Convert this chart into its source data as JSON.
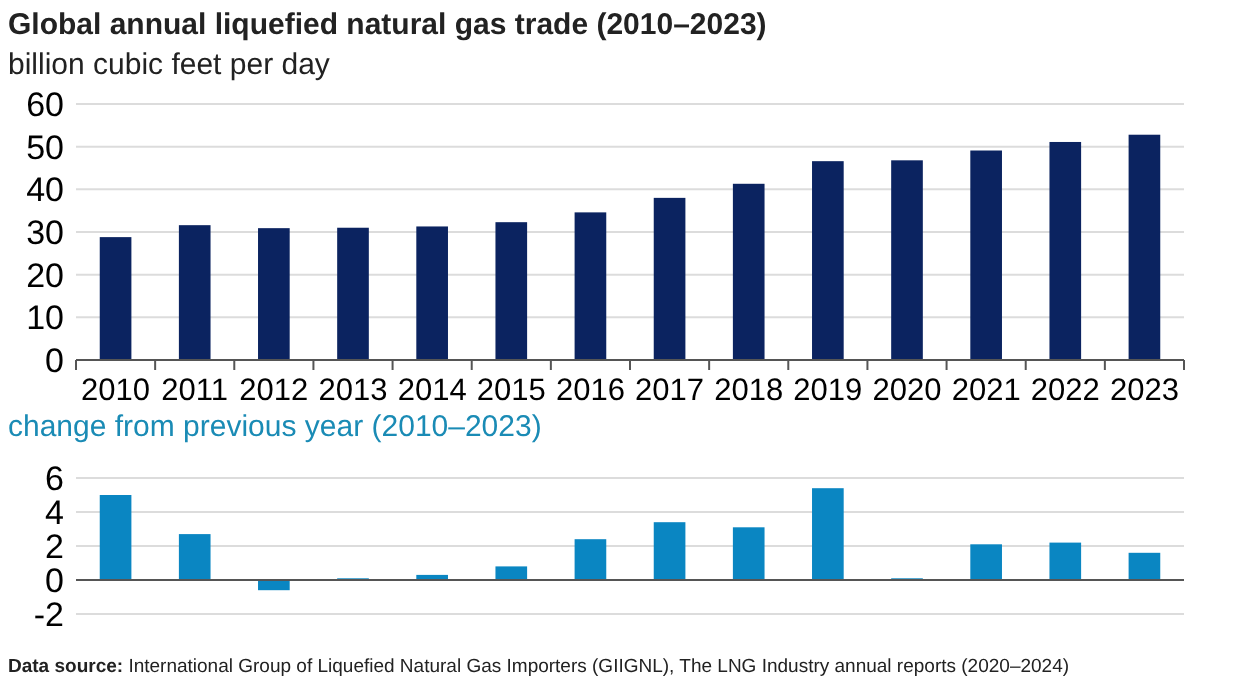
{
  "chart_data": [
    {
      "type": "bar",
      "title": "Global annual liquefied natural gas trade (2010–2023)",
      "subtitle": "billion cubic feet per day",
      "categories": [
        "2010",
        "2011",
        "2012",
        "2013",
        "2014",
        "2015",
        "2016",
        "2017",
        "2018",
        "2019",
        "2020",
        "2021",
        "2022",
        "2023"
      ],
      "values": [
        28.8,
        31.6,
        30.9,
        31.0,
        31.3,
        32.3,
        34.6,
        38.0,
        41.3,
        46.6,
        46.8,
        49.1,
        51.1,
        52.8
      ],
      "color": "#0b2360",
      "ylim": [
        0,
        60
      ],
      "yticks": [
        0,
        10,
        20,
        30,
        40,
        50,
        60
      ],
      "grid": "y"
    },
    {
      "type": "bar",
      "title": "change from previous year (2010–2023)",
      "categories": [
        null,
        null,
        null,
        null,
        null,
        null,
        null,
        null,
        null,
        null,
        null,
        null,
        null,
        null
      ],
      "values": [
        5.0,
        2.7,
        -0.6,
        0.1,
        0.3,
        0.8,
        2.4,
        3.4,
        3.1,
        5.4,
        0.1,
        2.1,
        2.2,
        1.6
      ],
      "color": "#0a86c2",
      "ylim": [
        -2,
        6
      ],
      "yticks": [
        -2,
        0,
        2,
        4,
        6
      ],
      "grid": "y",
      "tick_labels": "y",
      "annotations": [
        "Data source: International Group of Liquefied Natural Gas Importers (GIIGNL), The LNG Industry annual reports (2020–2024)"
      ]
    }
  ]
}
